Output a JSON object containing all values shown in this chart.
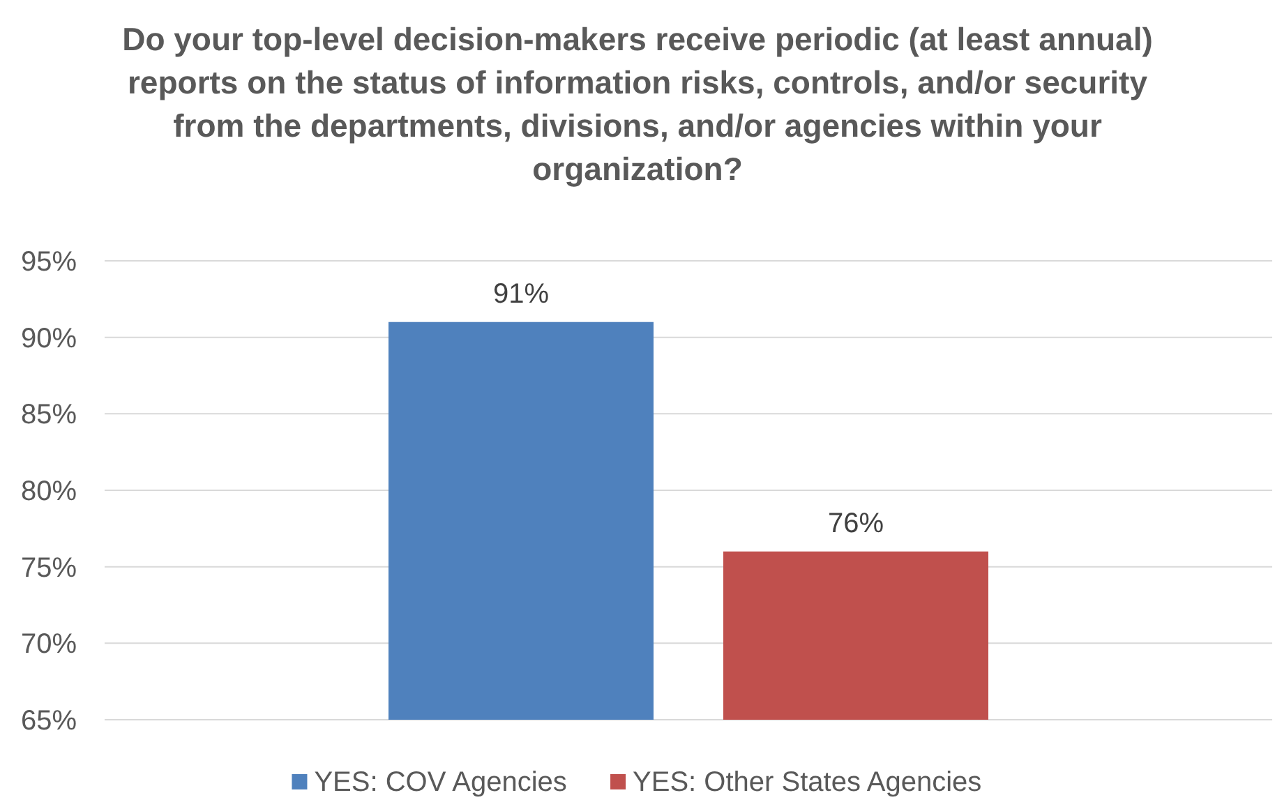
{
  "chart_data": {
    "type": "bar",
    "title": "Do your top-level decision-makers receive periodic (at least annual) reports on the status of information risks, controls, and/or security from the departments, divisions, and/or agencies within your organization?",
    "categories": [
      null
    ],
    "series": [
      {
        "name": "YES: COV Agencies",
        "color": "#4f81bd",
        "values": [
          91
        ],
        "value_labels": [
          "91%"
        ]
      },
      {
        "name": "YES: Other States Agencies",
        "color": "#c0504d",
        "values": [
          76
        ],
        "value_labels": [
          "76%"
        ]
      }
    ],
    "ylim": [
      65,
      95
    ],
    "yticks": [
      {
        "value": 65,
        "label": "65%"
      },
      {
        "value": 70,
        "label": "70%"
      },
      {
        "value": 75,
        "label": "75%"
      },
      {
        "value": 80,
        "label": "80%"
      },
      {
        "value": 85,
        "label": "85%"
      },
      {
        "value": 90,
        "label": "90%"
      },
      {
        "value": 95,
        "label": "95%"
      }
    ],
    "grid": "y",
    "legend": "bottom"
  }
}
